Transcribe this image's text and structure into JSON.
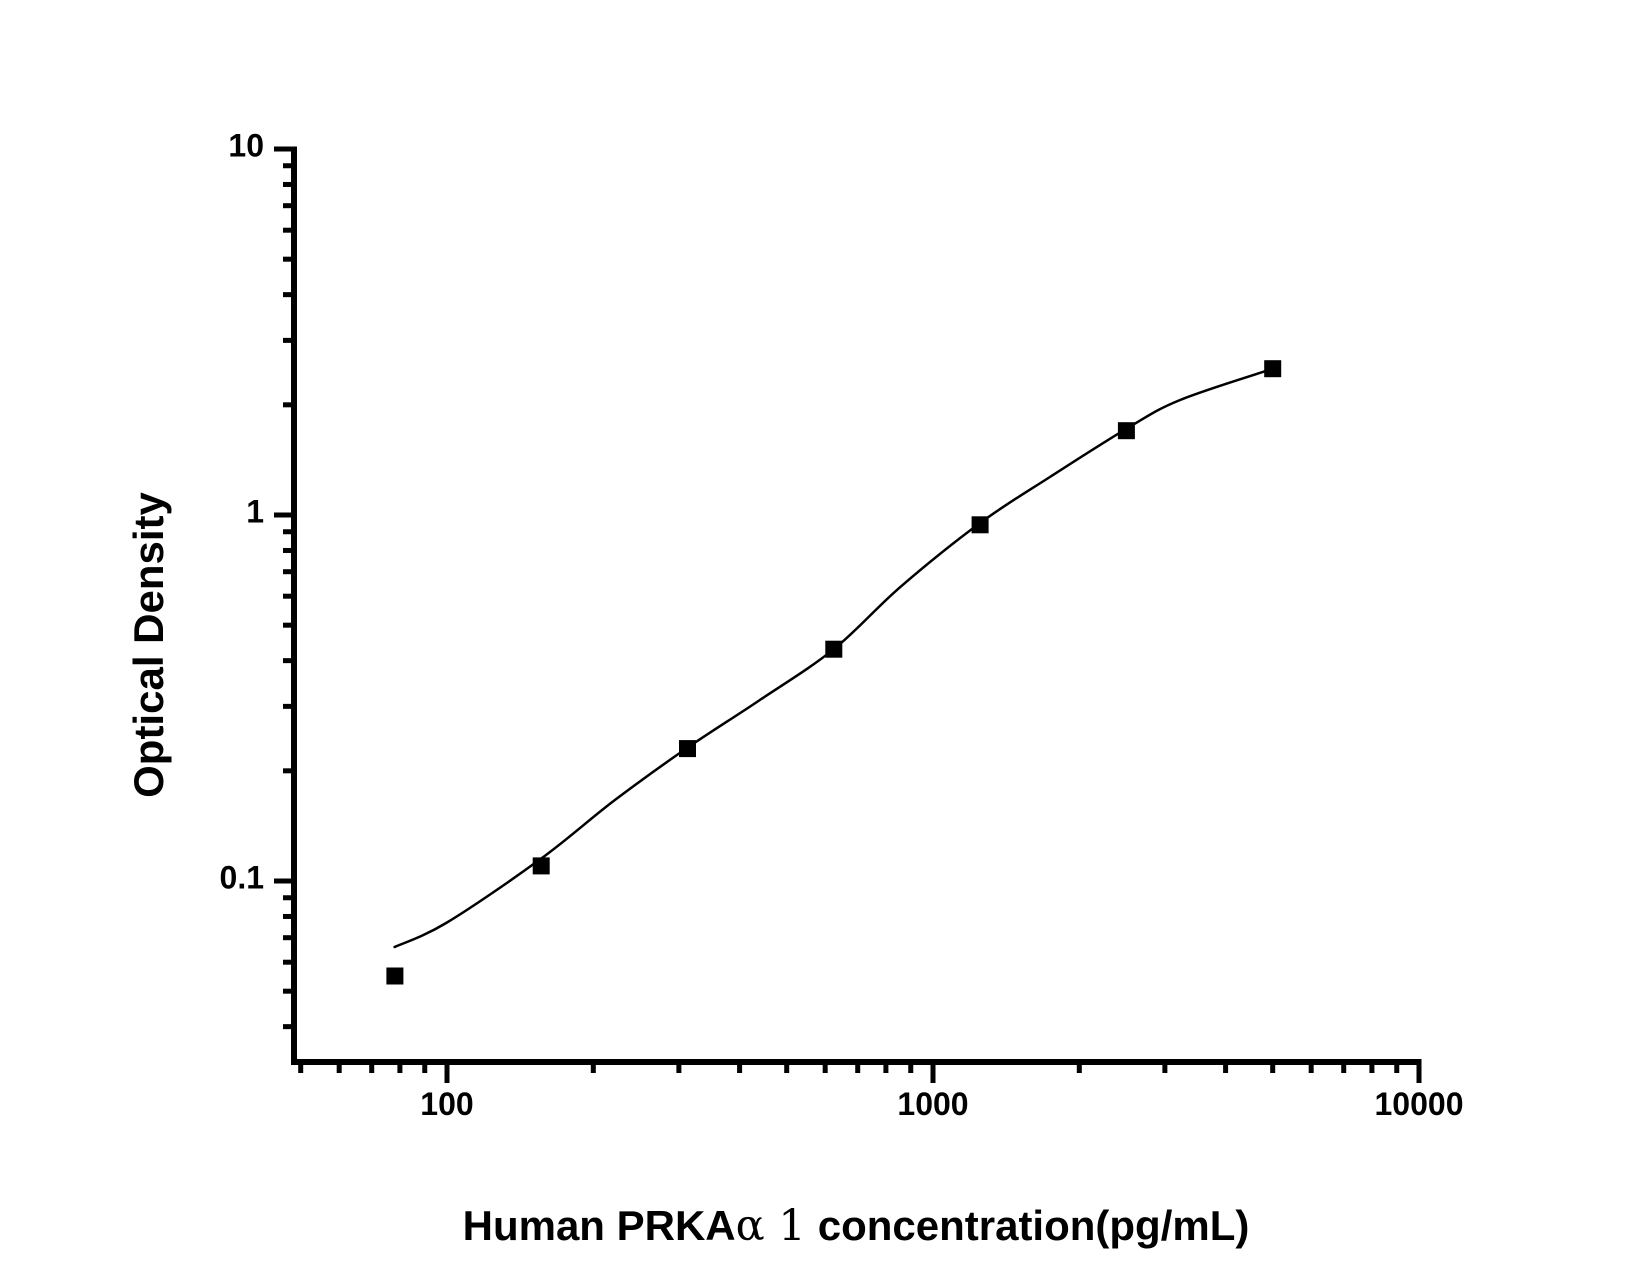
{
  "page": {
    "background": "#ffffff",
    "foreground": "#000000"
  },
  "chart_data": {
    "type": "scatter",
    "title": "",
    "xlabel": "Human PRKAα 1 concentration(pg/mL)",
    "xlabel_parts": [
      {
        "text": "Human PRKA",
        "font": "bold-sans"
      },
      {
        "text": "α 1",
        "font": "serif"
      },
      {
        "text": "concentration(pg/mL)",
        "font": "bold-sans"
      }
    ],
    "ylabel": "Optical Density",
    "x_scale": "log",
    "y_scale": "log",
    "xlim": [
      48,
      10000
    ],
    "ylim": [
      0.034,
      10
    ],
    "grid": false,
    "legend": null,
    "x_ticks_major": [
      100,
      1000,
      10000
    ],
    "x_tick_labels": [
      "100",
      "1000",
      "10000"
    ],
    "y_ticks_major": [
      10,
      1,
      0.1
    ],
    "y_tick_labels": [
      "10",
      "1",
      "0.1"
    ],
    "x_ticks_minor": [
      50,
      60,
      70,
      80,
      90,
      200,
      300,
      400,
      500,
      600,
      700,
      800,
      900,
      2000,
      3000,
      4000,
      5000,
      6000,
      7000,
      8000,
      9000
    ],
    "y_ticks_minor": [
      9,
      8,
      7,
      6,
      5,
      4,
      3,
      2,
      0.9,
      0.8,
      0.7,
      0.6,
      0.5,
      0.4,
      0.3,
      0.2,
      0.09,
      0.08,
      0.07,
      0.06,
      0.05,
      0.04
    ],
    "series": [
      {
        "name": "standards",
        "marker": "filled-square",
        "color": "#000000",
        "x": [
          78.125,
          156.25,
          312.5,
          625,
          1250,
          2500,
          5000
        ],
        "y": [
          0.055,
          0.11,
          0.23,
          0.43,
          0.94,
          1.7,
          2.51
        ]
      }
    ],
    "fit_curve": {
      "name": "4pl-fit-curve",
      "color": "#000000",
      "x": [
        78,
        100,
        156,
        221,
        312,
        440,
        625,
        857,
        1250,
        1740,
        2500,
        3220,
        5000
      ],
      "y": [
        0.066,
        0.077,
        0.115,
        0.166,
        0.231,
        0.312,
        0.43,
        0.636,
        0.951,
        1.27,
        1.72,
        2.06,
        2.51
      ]
    }
  }
}
